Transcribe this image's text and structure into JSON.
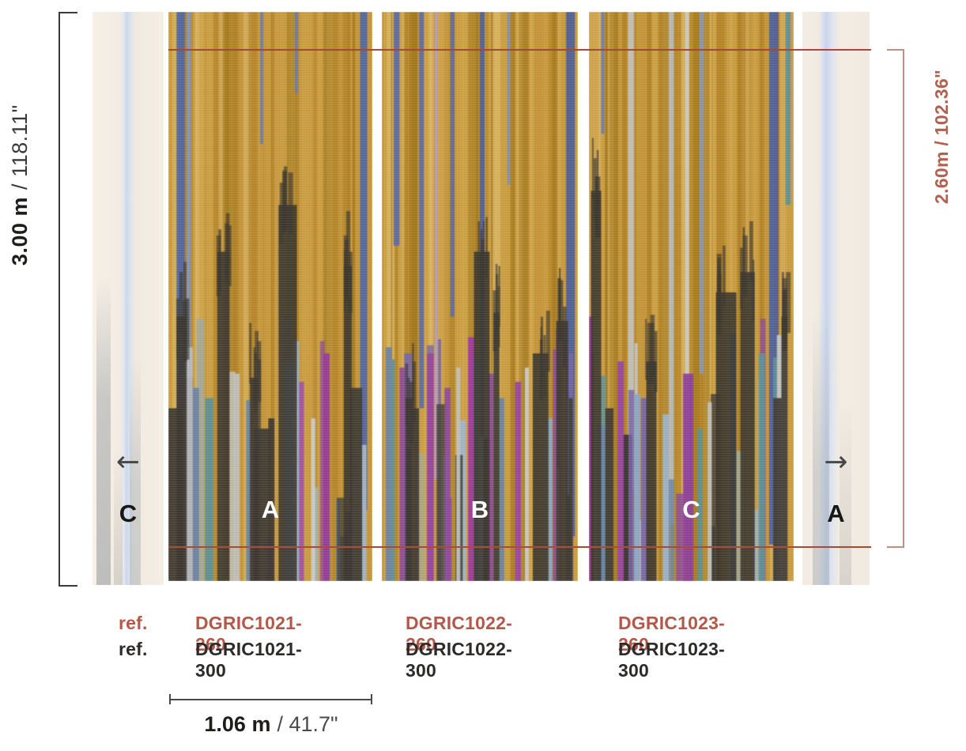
{
  "left_dimension": {
    "bold": "3.00 m",
    "rest": "/ 118.11\""
  },
  "right_dimension": {
    "text": "2.60m / 102.36\""
  },
  "bottom_dimension": {
    "bold": "1.06 m",
    "rest": "/ 41.7\""
  },
  "strips": {
    "left_partial": {
      "label": "C",
      "arrow": "←"
    },
    "right_partial": {
      "label": "A",
      "arrow": "→"
    },
    "panels": [
      {
        "label": "A"
      },
      {
        "label": "B"
      },
      {
        "label": "C"
      }
    ]
  },
  "refs": {
    "label_260": "ref.",
    "label_300": "ref.",
    "row_260": [
      "DGRIC1021-260",
      "DGRIC1022-260",
      "DGRIC1023-260"
    ],
    "row_300": [
      "DGRIC1021-300",
      "DGRIC1022-300",
      "DGRIC1023-300"
    ]
  },
  "colors": {
    "accent_line_red": "#a64a35",
    "ref_red": "#b4584a",
    "dimension_label_red": "#b2604f",
    "bracket_red": "#c08d80",
    "bracket_dark": "#3b3b3b",
    "base_ochre": "#c69738"
  }
}
